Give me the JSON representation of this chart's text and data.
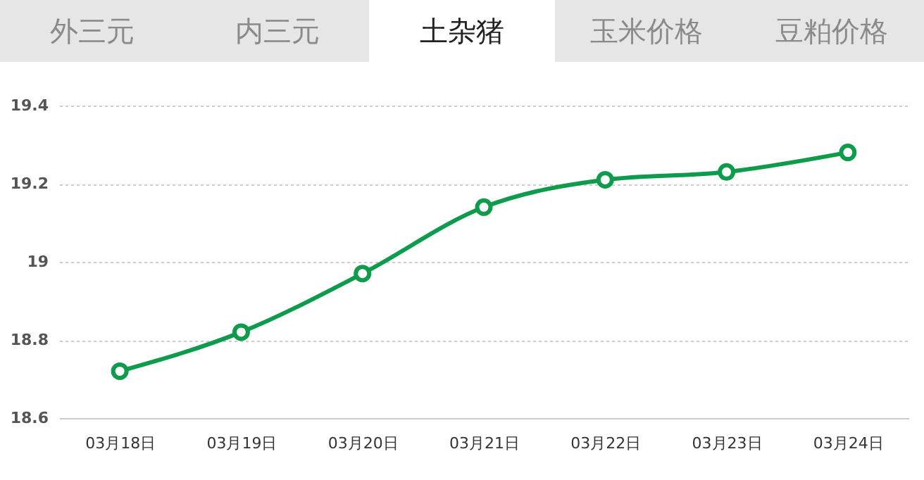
{
  "chart_data": {
    "type": "line",
    "title": "土杂猪",
    "annotations": [
      "外三元",
      "内三元",
      "玉米价格",
      "豆粕价格"
    ],
    "categories": [
      "03月18日",
      "03月19日",
      "03月20日",
      "03月21日",
      "03月22日",
      "03月23日",
      "03月24日"
    ],
    "series": [
      {
        "color": "#0e9c4c",
        "values": [
          18.72,
          18.82,
          18.97,
          19.14,
          19.21,
          19.23,
          19.28
        ]
      }
    ],
    "ylim": [
      18.6,
      19.4
    ],
    "yticks": [
      18.6,
      18.8,
      19,
      19.2,
      19.4
    ],
    "grid": "y",
    "marker": "circle",
    "line_style": "solid"
  }
}
